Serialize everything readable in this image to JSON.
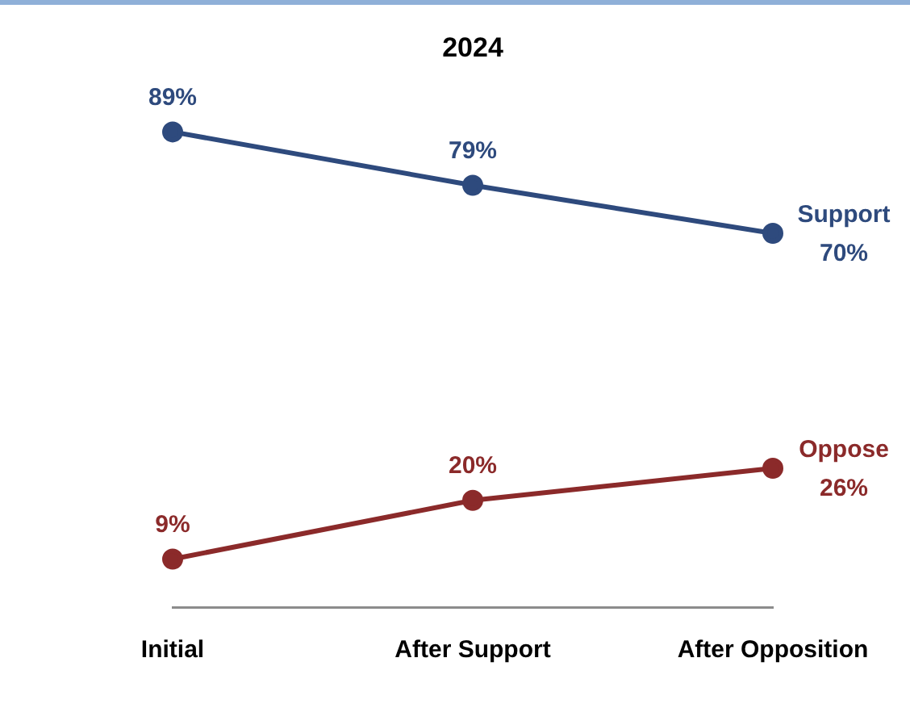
{
  "chart_data": {
    "type": "line",
    "title": "2024",
    "categories": [
      "Initial",
      "After Support",
      "After Opposition"
    ],
    "series": [
      {
        "name": "Support",
        "color": "#2e4a7d",
        "values": [
          89,
          79,
          70
        ],
        "value_labels": [
          "89%",
          "79%",
          "70%"
        ]
      },
      {
        "name": "Oppose",
        "color": "#8b2a2a",
        "values": [
          9,
          20,
          26
        ],
        "value_labels": [
          "9%",
          "20%",
          "26%"
        ]
      }
    ],
    "tick_labels": "x",
    "grid": false,
    "legend": false,
    "marker": "circle",
    "line_style": "solid"
  }
}
